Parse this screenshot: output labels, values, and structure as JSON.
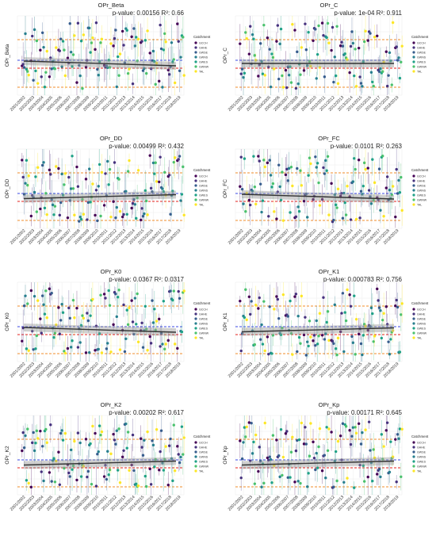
{
  "figure": {
    "legend_title": "Catchment",
    "legend_items": [
      "GCCH",
      "GHHE",
      "GWSE",
      "GWNS",
      "GWES",
      "GWNW",
      "TAL"
    ],
    "legend_colors": [
      "#440154",
      "#46327e",
      "#365c8d",
      "#277f8e",
      "#1fa187",
      "#4ac16d",
      "#fde725"
    ],
    "ref_line_colors": {
      "upper": "#f28e2b",
      "lower": "#f28e2b",
      "blue": "#3b49e6",
      "red": "#e4211c"
    },
    "trend_color": "#333333"
  },
  "chart_data": [
    {
      "type": "scatter",
      "title": "OPr_Beta",
      "ylabel": "OPr_Beta",
      "annotation": "p-value: 0.00156 R²: 0.66",
      "trend": "down",
      "categories": [
        "2001/2002",
        "2002/2003",
        "2003/2004",
        "2004/2005",
        "2005/2006",
        "2006/2007",
        "2007/2008",
        "2008/2009",
        "2009/2010",
        "2010/2011",
        "2011/2012",
        "2012/2013",
        "2013/2014",
        "2014/2015",
        "2015/2016",
        "2016/2017",
        "2017/2018",
        "2018/2019"
      ]
    },
    {
      "type": "scatter",
      "title": "OPr_C",
      "ylabel": "OPr_C",
      "annotation": "p-value: 1e-04 R²: 0.911",
      "trend": "flat",
      "categories": [
        "2001/2002",
        "2002/2003",
        "2003/2004",
        "2004/2005",
        "2005/2006",
        "2006/2007",
        "2007/2008",
        "2008/2009",
        "2009/2010",
        "2010/2011",
        "2011/2012",
        "2012/2013",
        "2013/2014",
        "2014/2015",
        "2015/2016",
        "2016/2017",
        "2017/2018",
        "2018/2019"
      ]
    },
    {
      "type": "scatter",
      "title": "OPr_DD",
      "ylabel": "OPr_DD",
      "annotation": "p-value: 0.00499 R²: 0.432",
      "trend": "up",
      "categories": [
        "2001/2002",
        "2002/2003",
        "2003/2004",
        "2004/2005",
        "2005/2006",
        "2006/2007",
        "2007/2008",
        "2008/2009",
        "2009/2010",
        "2010/2011",
        "2011/2012",
        "2012/2013",
        "2013/2014",
        "2014/2015",
        "2015/2016",
        "2016/2017",
        "2017/2018",
        "2018/2019"
      ]
    },
    {
      "type": "scatter",
      "title": "OPr_FC",
      "ylabel": "OPr_FC",
      "annotation": "p-value: 0.0101 R²: 0.263",
      "trend": "down",
      "categories": [
        "2001/2002",
        "2002/2003",
        "2003/2004",
        "2004/2005",
        "2005/2006",
        "2006/2007",
        "2007/2008",
        "2008/2009",
        "2009/2010",
        "2010/2011",
        "2011/2012",
        "2012/2013",
        "2013/2014",
        "2014/2015",
        "2015/2016",
        "2016/2017",
        "2017/2018",
        "2018/2019"
      ]
    },
    {
      "type": "scatter",
      "title": "OPr_K0",
      "ylabel": "OPr_K0",
      "annotation": "p-value: 0.0367 R²: 0.0317",
      "trend": "down",
      "categories": [
        "2001/2002",
        "2002/2003",
        "2003/2004",
        "2004/2005",
        "2005/2006",
        "2006/2007",
        "2007/2008",
        "2008/2009",
        "2009/2010",
        "2010/2011",
        "2011/2012",
        "2012/2013",
        "2013/2014",
        "2014/2015",
        "2015/2016",
        "2016/2017",
        "2017/2018",
        "2018/2019"
      ]
    },
    {
      "type": "scatter",
      "title": "OPr_K1",
      "ylabel": "OPr_K1",
      "annotation": "p-value: 0.000783 R²: 0.756",
      "trend": "up",
      "categories": [
        "2001/2002",
        "2002/2003",
        "2003/2004",
        "2004/2005",
        "2005/2006",
        "2006/2007",
        "2007/2008",
        "2008/2009",
        "2009/2010",
        "2010/2011",
        "2011/2012",
        "2012/2013",
        "2013/2014",
        "2014/2015",
        "2015/2016",
        "2016/2017",
        "2017/2018",
        "2018/2019"
      ]
    },
    {
      "type": "scatter",
      "title": "OPr_K2",
      "ylabel": "OPr_K2",
      "annotation": "p-value: 0.00202 R²: 0.617",
      "trend": "up",
      "categories": [
        "2001/2002",
        "2002/2003",
        "2003/2004",
        "2004/2005",
        "2005/2006",
        "2006/2007",
        "2007/2008",
        "2008/2009",
        "2009/2010",
        "2010/2011",
        "2011/2012",
        "2012/2013",
        "2013/2014",
        "2014/2015",
        "2015/2016",
        "2016/2017",
        "2017/2018",
        "2018/2019"
      ]
    },
    {
      "type": "scatter",
      "title": "OPr_Kp",
      "ylabel": "OPr_Kp",
      "annotation": "p-value: 0.00171 R²: 0.645",
      "trend": "up",
      "categories": [
        "2001/2002",
        "2002/2003",
        "2003/2004",
        "2004/2005",
        "2005/2006",
        "2006/2007",
        "2007/2008",
        "2008/2009",
        "2009/2010",
        "2010/2011",
        "2011/2012",
        "2012/2013",
        "2013/2014",
        "2014/2015",
        "2015/2016",
        "2016/2017",
        "2017/2018",
        "2018/2019"
      ]
    }
  ]
}
